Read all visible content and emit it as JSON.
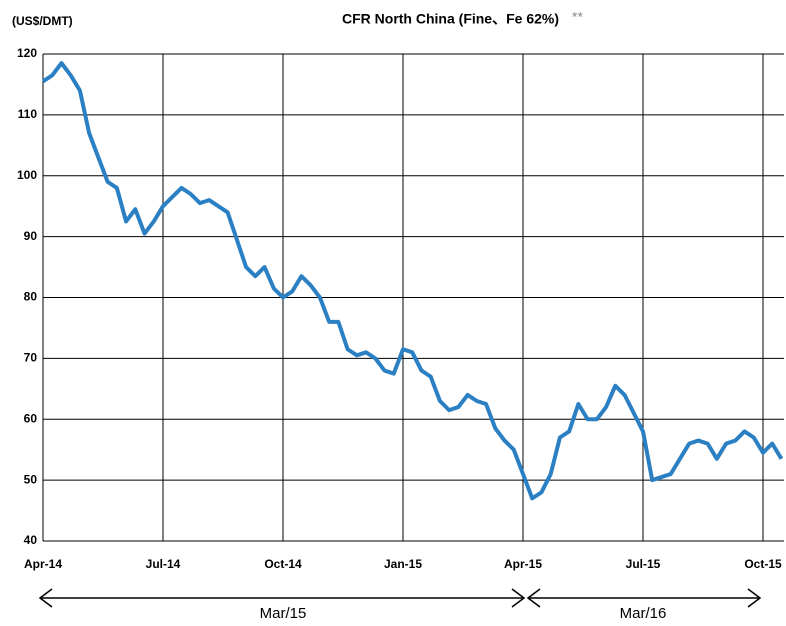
{
  "chart_data": {
    "type": "line",
    "title": "CFR North China  (Fine、Fe 62%)",
    "title_note": "**",
    "ylabel": "(US$/DMT)",
    "categories": [
      "Apr-14",
      null,
      null,
      null,
      null,
      null,
      null,
      null,
      null,
      null,
      null,
      null,
      null,
      "Jul-14",
      null,
      null,
      null,
      null,
      null,
      null,
      null,
      null,
      null,
      null,
      null,
      null,
      "Oct-14",
      null,
      null,
      null,
      null,
      null,
      null,
      null,
      null,
      null,
      null,
      null,
      null,
      "Jan-15",
      null,
      null,
      null,
      null,
      null,
      null,
      null,
      null,
      null,
      null,
      null,
      null,
      "Apr-15",
      null,
      null,
      null,
      null,
      null,
      null,
      null,
      null,
      null,
      null,
      null,
      null,
      "Jul-15",
      null,
      null,
      null,
      null,
      null,
      null,
      null,
      null,
      null,
      null,
      null,
      null,
      "Oct-15",
      null,
      null
    ],
    "series": [
      {
        "name": "CFR North China",
        "color": "#2b7fc3",
        "values": [
          115.5,
          116.5,
          118.5,
          116.5,
          114,
          107,
          103,
          99,
          98,
          92.5,
          94.5,
          90.5,
          92.5,
          95,
          96.5,
          98,
          97,
          95.5,
          96,
          95,
          94,
          89.5,
          85,
          83.5,
          85,
          81.5,
          80,
          81,
          83.5,
          82,
          80,
          76,
          76,
          71.5,
          70.5,
          71,
          70,
          68,
          67.5,
          71.5,
          71,
          68,
          67,
          63,
          61.5,
          62,
          64,
          63,
          62.5,
          58.5,
          56.5,
          55,
          51,
          47,
          48,
          51,
          57,
          58,
          62.5,
          60,
          60,
          62,
          65.5,
          64,
          61,
          58,
          50,
          50.5,
          51,
          53.5,
          56,
          56.5,
          56,
          53.5,
          56,
          56.5,
          58,
          57,
          54.5,
          56,
          53.5
        ]
      }
    ],
    "ylim": [
      40,
      120
    ],
    "yticks": [
      40,
      50,
      60,
      70,
      80,
      90,
      100,
      110,
      120
    ],
    "grid": true,
    "annotations": [
      "Mar/15",
      "Mar/16"
    ]
  }
}
